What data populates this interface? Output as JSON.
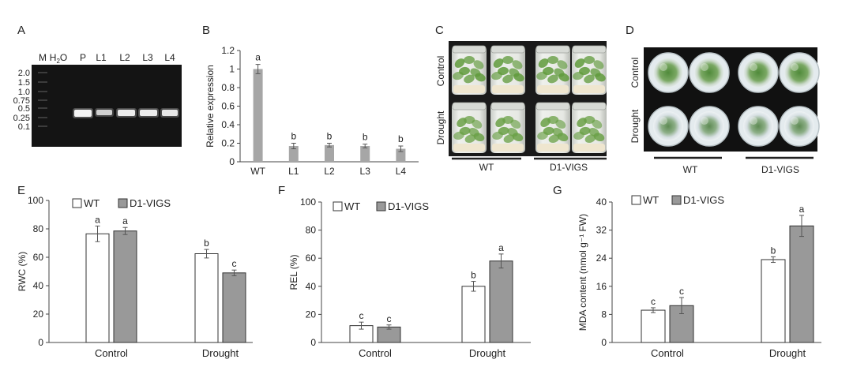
{
  "panels": {
    "A": {
      "letter": "A",
      "lanes": [
        "M",
        "H2O",
        "P",
        "L1",
        "L2",
        "L3",
        "L4"
      ],
      "h2o_main": "H",
      "h2o_sub": "2",
      "h2o_tail": "O",
      "ladder": [
        "2.0",
        "1.5",
        "1.0",
        "0.75",
        "0.5",
        "0.25",
        "0.1"
      ]
    },
    "B": {
      "letter": "B"
    },
    "C": {
      "letter": "C",
      "row_labels": [
        "Control",
        "Drought"
      ],
      "group_labels": [
        "WT",
        "D1-VIGS"
      ]
    },
    "D": {
      "letter": "D",
      "row_labels": [
        "Control",
        "Drought"
      ],
      "group_labels": [
        "WT",
        "D1-VIGS"
      ]
    },
    "E": {
      "letter": "E"
    },
    "F": {
      "letter": "F"
    },
    "G": {
      "letter": "G"
    }
  },
  "colors": {
    "wt_bar": "#ffffff",
    "vigs_bar": "#999999",
    "expr_bar": "#a6a6a6",
    "gel_bg": "#141414"
  },
  "chart_data": [
    {
      "id": "B",
      "type": "bar",
      "categories": [
        "WT",
        "L1",
        "L2",
        "L3",
        "L4"
      ],
      "values": [
        1.0,
        0.17,
        0.18,
        0.17,
        0.14
      ],
      "errors": [
        0.05,
        0.03,
        0.02,
        0.02,
        0.03
      ],
      "letters": [
        "a",
        "b",
        "b",
        "b",
        "b"
      ],
      "ylabel": "Relative expression",
      "ylim": [
        0,
        1.2
      ],
      "yticks": [
        "0",
        "0.2",
        "0.4",
        "0.6",
        "0.8",
        "1",
        "1.2"
      ]
    },
    {
      "id": "E",
      "type": "bar",
      "categories": [
        "Control",
        "Drought"
      ],
      "legend": [
        "WT",
        "D1-VIGS"
      ],
      "series": [
        {
          "name": "WT",
          "values": [
            76.5,
            62.5
          ],
          "errors": [
            5.5,
            3.0
          ],
          "letters": [
            "a",
            "b"
          ]
        },
        {
          "name": "D1-VIGS",
          "values": [
            78.5,
            49.0
          ],
          "errors": [
            2.5,
            2.0
          ],
          "letters": [
            "a",
            "c"
          ]
        }
      ],
      "ylabel": "RWC (%)",
      "ylim": [
        0,
        100
      ],
      "yticks": [
        "0",
        "20",
        "40",
        "60",
        "80",
        "100"
      ]
    },
    {
      "id": "F",
      "type": "bar",
      "categories": [
        "Control",
        "Drought"
      ],
      "legend": [
        "WT",
        "D1-VIGS"
      ],
      "series": [
        {
          "name": "WT",
          "values": [
            12.0,
            40.0
          ],
          "errors": [
            2.5,
            3.5
          ],
          "letters": [
            "c",
            "b"
          ]
        },
        {
          "name": "D1-VIGS",
          "values": [
            11.0,
            58.0
          ],
          "errors": [
            1.5,
            5.0
          ],
          "letters": [
            "c",
            "a"
          ]
        }
      ],
      "ylabel": "REL (%)",
      "ylim": [
        0,
        100
      ],
      "yticks": [
        "0",
        "20",
        "40",
        "60",
        "80",
        "100"
      ]
    },
    {
      "id": "G",
      "type": "bar",
      "categories": [
        "Control",
        "Drought"
      ],
      "legend": [
        "WT",
        "D1-VIGS"
      ],
      "series": [
        {
          "name": "WT",
          "values": [
            9.2,
            23.6
          ],
          "errors": [
            0.7,
            0.8
          ],
          "letters": [
            "c",
            "b"
          ]
        },
        {
          "name": "D1-VIGS",
          "values": [
            10.5,
            33.2
          ],
          "errors": [
            2.3,
            3.0
          ],
          "letters": [
            "c",
            "a"
          ]
        }
      ],
      "ylabel": "MDA content (nmol g⁻¹ FW)",
      "ylim": [
        0,
        40
      ],
      "yticks": [
        "0",
        "8",
        "16",
        "24",
        "32",
        "40"
      ]
    }
  ]
}
